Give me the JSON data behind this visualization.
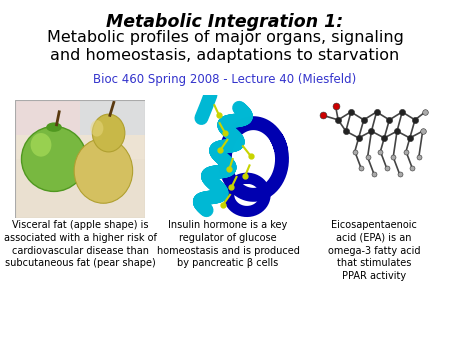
{
  "title_bold_italic": "Metabolic Integration 1:",
  "title_regular": "Metabolic profiles of major organs, signaling\nand homeostasis, adaptations to starvation",
  "subtitle": "Bioc 460 Spring 2008 - Lecture 40 (Miesfeld)",
  "subtitle_color": "#3333cc",
  "bg_color": "#ffffff",
  "caption1": "Visceral fat (apple shape) is\nassociated with a higher risk of\ncardiovascular disease than\nsubcutaneous fat (pear shape)",
  "caption2": "Insulin hormone is a key\nregulator of glucose\nhomeostasis and is produced\nby pancreatic β cells",
  "caption3": "Eicosapentaenoic\nacid (EPA) is an\nomega-3 fatty acid\nthat stimulates\nPPAR activity",
  "caption_fontsize": 7.0,
  "title_fontsize1": 12.5,
  "title_fontsize2": 11.5,
  "subtitle_fontsize": 8.5
}
